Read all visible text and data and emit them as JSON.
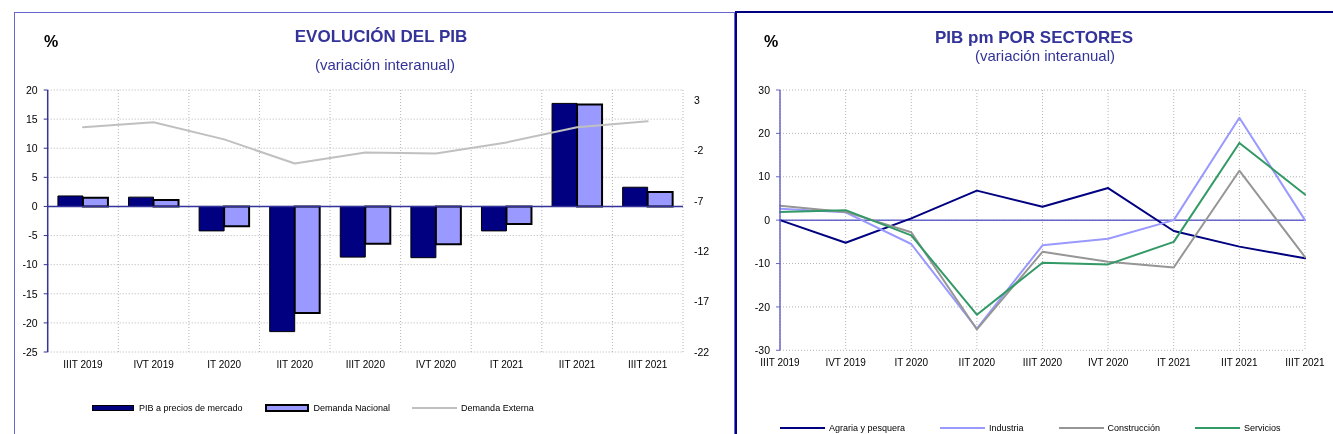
{
  "chart_data": [
    {
      "type": "bar",
      "title": "EVOLUCIÓN DEL PIB",
      "subtitle": "(variación interanual)",
      "ylabel": "%",
      "categories": [
        "IIIT 2019",
        "IVT 2019",
        "IT 2020",
        "IIT 2020",
        "IIIT 2020",
        "IVT 2020",
        "IT 2021",
        "IIT 2021",
        "IIIT 2021"
      ],
      "series": [
        {
          "name": "PIB a precios de mercado",
          "color": "#000080",
          "values": [
            1.8,
            1.6,
            -4.2,
            -21.5,
            -8.7,
            -8.8,
            -4.2,
            17.7,
            3.3
          ]
        },
        {
          "name": "Demanda Nacional",
          "color": "#9999ff",
          "values": [
            1.5,
            1.1,
            -3.4,
            -18.3,
            -6.4,
            -6.5,
            -3.0,
            17.5,
            2.5
          ]
        },
        {
          "name": "Demanda Externa",
          "type": "line",
          "axis": "y2",
          "color": "#c0c0c0",
          "values": [
            0.3,
            0.8,
            -0.9,
            -3.3,
            -2.2,
            -2.3,
            -1.2,
            0.3,
            0.9
          ]
        }
      ],
      "ylim": [
        -25,
        20
      ],
      "yticks": [
        -25,
        -20,
        -15,
        -10,
        -5,
        0,
        5,
        10,
        15,
        20
      ],
      "y2lim": [
        -22,
        4
      ],
      "y2ticks": [
        -22,
        -17,
        -12,
        -7,
        -2,
        3
      ],
      "grid": true,
      "legend": "bottom",
      "marker": "none",
      "ref_lines": [
        {
          "axis": "y",
          "value": 0,
          "color": "#333399"
        }
      ]
    },
    {
      "type": "line",
      "title": "PIB pm POR SECTORES",
      "subtitle": "(variación interanual)",
      "ylabel": "%",
      "categories": [
        "IIIT 2019",
        "IVT 2019",
        "IT 2020",
        "IIT 2020",
        "IIIT 2020",
        "IVT 2020",
        "IT 2021",
        "IIT 2021",
        "IIIT 2021"
      ],
      "series": [
        {
          "name": "Agraria y pesquera",
          "color": "#000080",
          "values": [
            0,
            -5.2,
            0.4,
            6.8,
            3.1,
            7.4,
            -2.5,
            -6.1,
            -8.8
          ]
        },
        {
          "name": "Industria",
          "color": "#9999ff",
          "values": [
            2.6,
            1.8,
            -5.5,
            -25,
            -5.8,
            -4.3,
            0,
            23.6,
            0
          ]
        },
        {
          "name": "Construcción",
          "color": "#969696",
          "values": [
            3.3,
            1.9,
            -2.8,
            -25.2,
            -7.3,
            -9.6,
            -10.9,
            11.4,
            -8.5
          ]
        },
        {
          "name": "Servicios",
          "color": "#339966",
          "values": [
            1.9,
            2.3,
            -3.5,
            -21.8,
            -9.8,
            -10.2,
            -5.0,
            17.8,
            5.9
          ]
        }
      ],
      "ylim": [
        -30,
        30
      ],
      "yticks": [
        -30,
        -20,
        -10,
        0,
        10,
        20,
        30
      ],
      "grid": true,
      "legend": "bottom",
      "marker": "none",
      "ref_lines": [
        {
          "axis": "y",
          "value": 0,
          "color": "#6666cc"
        }
      ]
    }
  ]
}
